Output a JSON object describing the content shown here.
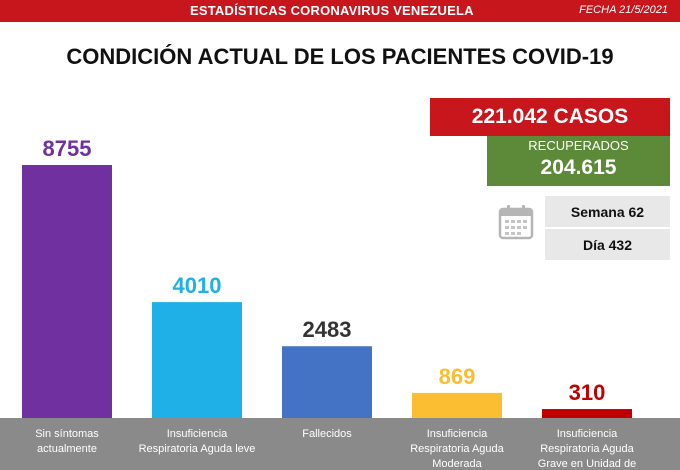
{
  "header": {
    "title": "ESTADÍSTICAS CORONAVIRUS VENEZUELA",
    "date": "FECHA 21/5/2021"
  },
  "chart_data": {
    "type": "bar",
    "title": "CONDICIÓN ACTUAL DE LOS PACIENTES COVID-19",
    "categories": [
      [
        "Sin síntomas",
        "actualmente"
      ],
      [
        "Insuficiencia",
        "Respiratoria Aguda leve"
      ],
      [
        "Fallecidos"
      ],
      [
        "Insuficiencia",
        "Respiratoria Aguda",
        "Moderada"
      ],
      [
        "Insuficiencia",
        "Respiratoria Aguda",
        "Grave en Unidad de"
      ]
    ],
    "values": [
      8755,
      4010,
      2483,
      869,
      310
    ],
    "colors": [
      "#7030a0",
      "#1fb0e8",
      "#4472c4",
      "#fbbd31",
      "#c00000"
    ],
    "label_colors": [
      "#7030a0",
      "#1fb0e8",
      "#333333",
      "#fbbd31",
      "#c00000"
    ],
    "ylim": [
      0,
      8755
    ]
  },
  "summary": {
    "cases": "221.042 CASOS",
    "recovered_label": "RECUPERADOS",
    "recovered_value": "204.615",
    "week": "Semana 62",
    "day": "Día 432"
  },
  "icons": {
    "calendar": "calendar-icon"
  }
}
